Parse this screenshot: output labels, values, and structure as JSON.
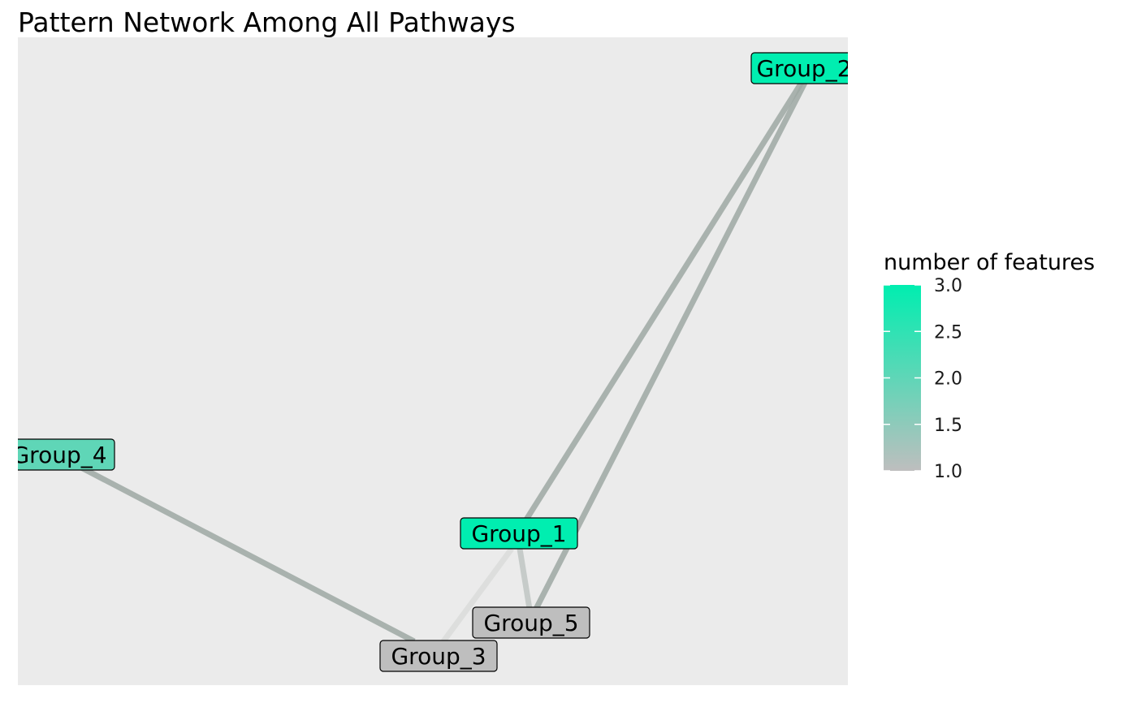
{
  "title": "Pattern Network Among All Pathways",
  "legend": {
    "title": "number of features",
    "ticks": [
      "3.0",
      "2.5",
      "2.0",
      "1.5",
      "1.0"
    ],
    "range": [
      1.0,
      3.0
    ],
    "colors": {
      "low": "#BEBEBE",
      "high": "#00EEB0"
    }
  },
  "colors": {
    "panel_background": "#EBEBEB",
    "edge_color": "#9DA8A3"
  },
  "nodes": [
    {
      "id": "Group_2",
      "label": "Group_2",
      "features": 3
    },
    {
      "id": "Group_4",
      "label": "Group_4",
      "features": 2
    },
    {
      "id": "Group_1",
      "label": "Group_1",
      "features": 3
    },
    {
      "id": "Group_5",
      "label": "Group_5",
      "features": 1
    },
    {
      "id": "Group_3",
      "label": "Group_3",
      "features": 1
    }
  ],
  "edges": [
    {
      "from": "Group_2",
      "to": "Group_1",
      "strength": "strong"
    },
    {
      "from": "Group_2",
      "to": "Group_5",
      "strength": "strong"
    },
    {
      "from": "Group_4",
      "to": "Group_3",
      "strength": "strong"
    },
    {
      "from": "Group_1",
      "to": "Group_5",
      "strength": "medium"
    },
    {
      "from": "Group_1",
      "to": "Group_3",
      "strength": "weak"
    }
  ]
}
